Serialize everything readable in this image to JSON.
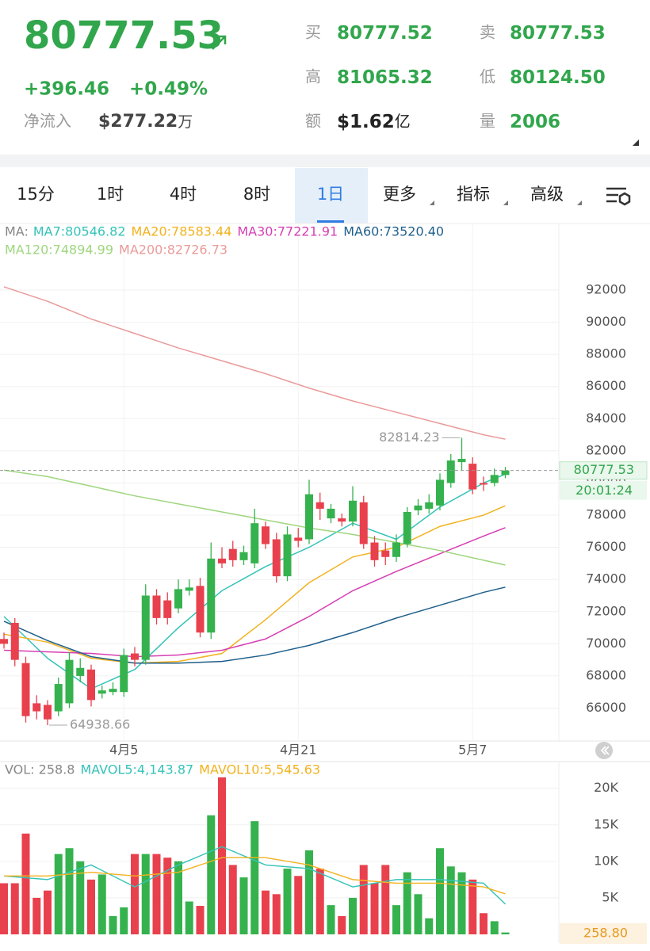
{
  "header": {
    "price": "80777.53",
    "change": "+396.46",
    "change_pct": "+0.49%",
    "netflow_label": "净流入",
    "netflow_value": "$277.22",
    "netflow_unit": "万",
    "stats": [
      {
        "label": "买",
        "value": "80777.52"
      },
      {
        "label": "卖",
        "value": "80777.53"
      },
      {
        "label": "高",
        "value": "81065.32"
      },
      {
        "label": "低",
        "value": "80124.50"
      },
      {
        "label": "额",
        "value": "$1.62",
        "unit": "亿"
      },
      {
        "label": "量",
        "value": "2006"
      }
    ]
  },
  "tabs": [
    "15分",
    "1时",
    "4时",
    "8时",
    "1日",
    "更多",
    "指标",
    "高级"
  ],
  "active_tab": 4,
  "chart_data": [
    {
      "type": "candlestick",
      "legend_prefix": "MA:",
      "categories": [
        null,
        null,
        null,
        null,
        null,
        null,
        null,
        null,
        null,
        null,
        null,
        "4月5",
        null,
        null,
        null,
        null,
        null,
        null,
        null,
        null,
        null,
        null,
        null,
        null,
        null,
        null,
        null,
        "4月21",
        null,
        null,
        null,
        null,
        null,
        null,
        null,
        null,
        null,
        null,
        null,
        null,
        null,
        null,
        null,
        "5月7",
        null,
        null,
        null
      ],
      "open": [
        70300,
        71300,
        68800,
        66300,
        66200,
        65800,
        66300,
        68000,
        68400,
        66900,
        67000,
        67000,
        69400,
        69000,
        73000,
        72700,
        72200,
        73300,
        73600,
        70700,
        75300,
        75900,
        75200,
        75000,
        77300,
        76500,
        74200,
        76600,
        76500,
        78800,
        77800,
        77800,
        77600,
        78800,
        76300,
        75800,
        75400,
        76200,
        78300,
        78400,
        78600,
        80000,
        81300,
        81200,
        80000,
        80000,
        80500
      ],
      "close": [
        70000,
        69000,
        65500,
        65800,
        65300,
        67500,
        69000,
        68500,
        66500,
        67100,
        67200,
        69300,
        69000,
        73000,
        71600,
        71600,
        73400,
        73500,
        70700,
        75300,
        75000,
        75200,
        75700,
        77500,
        76200,
        74200,
        76800,
        76400,
        79300,
        78400,
        78400,
        77600,
        78900,
        76200,
        75200,
        75400,
        76300,
        78200,
        78600,
        78800,
        80200,
        81400,
        81500,
        79600,
        79900,
        80500,
        80777.53
      ],
      "high": [
        70700,
        71600,
        69200,
        66800,
        66500,
        67900,
        69500,
        69100,
        68700,
        67400,
        67600,
        69700,
        69800,
        73700,
        73400,
        73200,
        74000,
        74000,
        74100,
        76300,
        76000,
        76400,
        76100,
        78400,
        77600,
        76900,
        77300,
        77200,
        80200,
        79400,
        78700,
        78100,
        79800,
        79200,
        76700,
        76300,
        76800,
        78500,
        79000,
        79300,
        80600,
        81800,
        82814.23,
        81600,
        80400,
        80900,
        81000
      ],
      "low": [
        69700,
        68600,
        65100,
        65300,
        64938.66,
        65500,
        66000,
        67600,
        66100,
        66600,
        66800,
        66700,
        68600,
        68700,
        71200,
        71200,
        71900,
        73000,
        70400,
        70300,
        74700,
        74800,
        74900,
        74700,
        75900,
        73800,
        73900,
        76000,
        76200,
        77700,
        77500,
        77300,
        77300,
        75900,
        74800,
        74900,
        75100,
        76000,
        78000,
        78100,
        78300,
        79700,
        80800,
        79300,
        79500,
        79800,
        80300
      ],
      "ma_series": [
        {
          "name": "MA7:80546.82",
          "color": "#34c3b8",
          "x": [
            0,
            4,
            8,
            12,
            16,
            20,
            24,
            28,
            32,
            36,
            40,
            44,
            46
          ],
          "values": [
            71700,
            69100,
            67200,
            68400,
            71000,
            73300,
            74800,
            76000,
            77500,
            76500,
            78500,
            80000,
            80546.82
          ]
        },
        {
          "name": "MA20:78583.44",
          "color": "#f2b21f",
          "x": [
            0,
            4,
            8,
            12,
            16,
            20,
            24,
            28,
            32,
            36,
            40,
            44,
            46
          ],
          "values": [
            70600,
            70100,
            69100,
            68800,
            68900,
            69400,
            71500,
            73800,
            75400,
            76000,
            77300,
            78000,
            78583.44
          ]
        },
        {
          "name": "MA30:77221.91",
          "color": "#d63fb3",
          "x": [
            0,
            4,
            8,
            12,
            16,
            20,
            24,
            28,
            32,
            36,
            40,
            44,
            46
          ],
          "values": [
            69600,
            69500,
            69400,
            69200,
            69300,
            69600,
            70300,
            71700,
            73300,
            74500,
            75600,
            76700,
            77221.91
          ]
        },
        {
          "name": "MA60:73520.40",
          "color": "#1f5f8b",
          "x": [
            0,
            4,
            8,
            12,
            16,
            20,
            24,
            28,
            32,
            36,
            40,
            44,
            46
          ],
          "values": [
            71400,
            70200,
            69200,
            68800,
            68800,
            68900,
            69300,
            69900,
            70700,
            71600,
            72400,
            73200,
            73520.4
          ]
        },
        {
          "name": "MA120:74894.99",
          "color": "#9ed67e",
          "x": [
            0,
            4,
            8,
            12,
            16,
            20,
            24,
            28,
            32,
            36,
            40,
            44,
            46
          ],
          "values": [
            80800,
            80400,
            79800,
            79200,
            78700,
            78200,
            77700,
            77200,
            76800,
            76300,
            75800,
            75200,
            74894.99
          ]
        },
        {
          "name": "MA200:82726.73",
          "color": "#eb9a9a",
          "x": [
            0,
            4,
            8,
            12,
            16,
            20,
            24,
            28,
            32,
            36,
            40,
            44,
            46
          ],
          "values": [
            92200,
            91300,
            90200,
            89300,
            88400,
            87600,
            86800,
            85900,
            85100,
            84400,
            83700,
            83000,
            82726.73
          ]
        }
      ],
      "ylim": [
        64300,
        93700
      ],
      "yticks": [
        66000,
        68000,
        70000,
        72000,
        74000,
        76000,
        78000,
        80000,
        82000,
        84000,
        86000,
        88000,
        90000,
        92000
      ],
      "last_price": 80777.53,
      "countdown": "20:01:24",
      "max_index": 42,
      "min_index": 4,
      "up_color": "#35b24e",
      "down_color": "#e8414d"
    },
    {
      "type": "bar",
      "title": "VOL: 258.8",
      "values": [
        7000,
        7000,
        13800,
        5000,
        6000,
        11000,
        11800,
        10000,
        7500,
        8200,
        2500,
        3700,
        11000,
        11000,
        11000,
        10500,
        10000,
        4500,
        3900,
        16300,
        21500,
        9500,
        7800,
        15500,
        6000,
        5500,
        9000,
        8000,
        11500,
        9000,
        4000,
        2500,
        5000,
        9500,
        7000,
        9500,
        4000,
        8500,
        5500,
        2200,
        11800,
        9300,
        8500,
        7500,
        2900,
        1800,
        258.8
      ],
      "value_labels": [
        null,
        null,
        null,
        null,
        null,
        null,
        null,
        null,
        null,
        null,
        null,
        null,
        null,
        null,
        null,
        null,
        null,
        null,
        null,
        null,
        null,
        null,
        null,
        null,
        null,
        null,
        null,
        null,
        null,
        null,
        null,
        null,
        null,
        null,
        null,
        null,
        null,
        null,
        null,
        null,
        null,
        null,
        null,
        null,
        null,
        null,
        "258.80"
      ],
      "lines": [
        {
          "name": "MAVOL5:4,143.87",
          "color": "#34c3b8",
          "x": [
            0,
            4,
            8,
            12,
            16,
            20,
            24,
            28,
            32,
            36,
            40,
            44,
            46
          ],
          "values": [
            8000,
            7500,
            9500,
            6500,
            9500,
            12000,
            9500,
            9000,
            6500,
            7500,
            7500,
            7000,
            4143.87
          ]
        },
        {
          "name": "MAVOL10:5,545.63",
          "color": "#f2b21f",
          "x": [
            0,
            4,
            8,
            12,
            16,
            20,
            24,
            28,
            32,
            36,
            40,
            44,
            46
          ],
          "values": [
            8000,
            8000,
            8500,
            8000,
            8500,
            10500,
            10500,
            9500,
            7500,
            7000,
            7000,
            6500,
            5545.63
          ]
        }
      ],
      "ylim": [
        0,
        21700
      ],
      "yticks": [
        {
          "value": 5000,
          "label": "5K"
        },
        {
          "value": 10000,
          "label": "10K"
        },
        {
          "value": 15000,
          "label": "15K"
        },
        {
          "value": 20000,
          "label": "20K"
        }
      ]
    }
  ]
}
